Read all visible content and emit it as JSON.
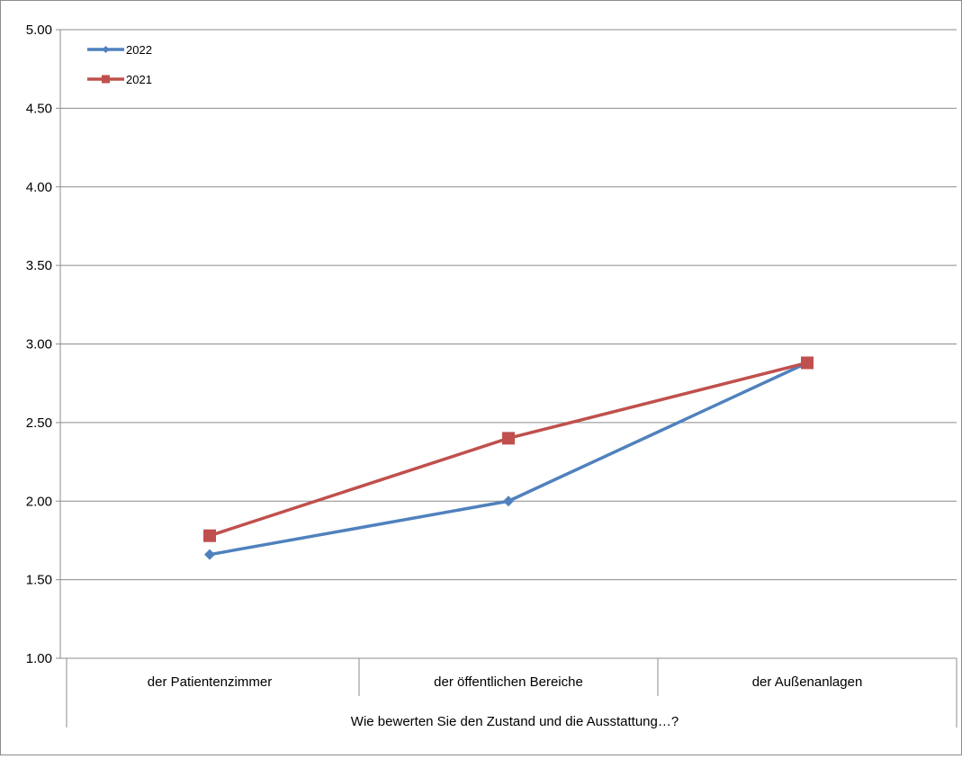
{
  "chart_data": {
    "type": "line",
    "categories": [
      "der Patientenzimmer",
      "der öffentlichen Bereiche",
      "der Außenanlagen"
    ],
    "series": [
      {
        "name": "2022",
        "values": [
          1.66,
          2.0,
          2.88
        ],
        "color": "#4F81BD",
        "marker": "diamond"
      },
      {
        "name": "2021",
        "values": [
          1.78,
          2.4,
          2.88
        ],
        "color": "#C0504D",
        "marker": "square"
      }
    ],
    "xlabel": "Wie bewerten Sie den Zustand und die Ausstattung…?",
    "ylabel": "",
    "ylim": [
      1.0,
      5.0
    ],
    "yticks": [
      "1.00",
      "1.50",
      "2.00",
      "2.50",
      "3.00",
      "3.50",
      "4.00",
      "4.50",
      "5.00"
    ],
    "ytick_values": [
      1.0,
      1.5,
      2.0,
      2.5,
      3.0,
      3.5,
      4.0,
      4.5,
      5.0
    ],
    "grid": true,
    "legend_position": "top-left"
  }
}
